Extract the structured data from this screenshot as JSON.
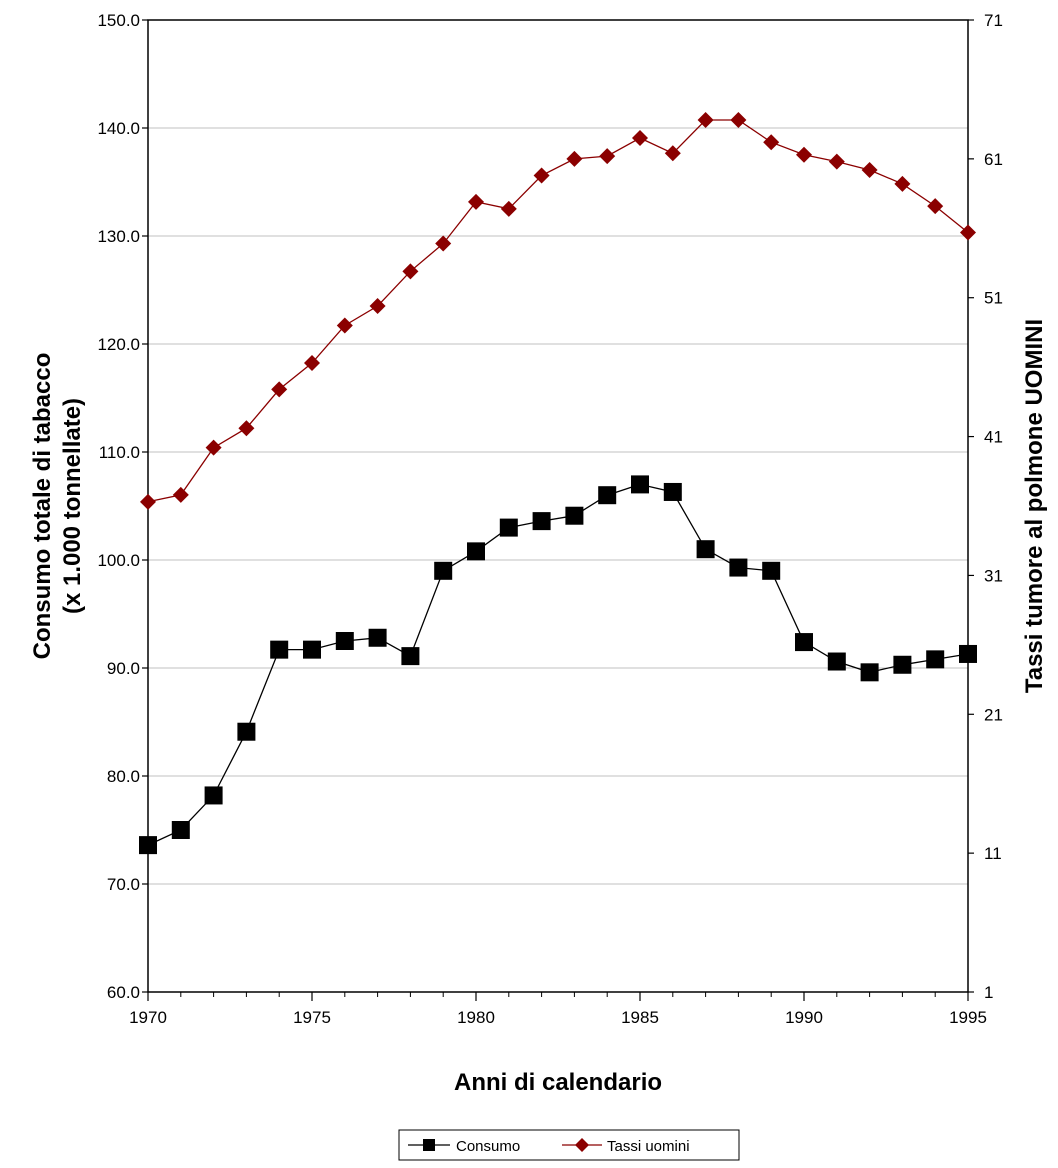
{
  "chart_data": {
    "type": "line",
    "title": "",
    "xlabel": "Anni di calendario",
    "ylabel_left": [
      "Consumo totale di tabacco",
      "(x 1.000 tonnellate)"
    ],
    "ylabel_right": "Tassi tumore al polmone UOMINI",
    "x": [
      1970,
      1971,
      1972,
      1973,
      1974,
      1975,
      1976,
      1977,
      1978,
      1979,
      1980,
      1981,
      1982,
      1983,
      1984,
      1985,
      1986,
      1987,
      1988,
      1989,
      1990,
      1991,
      1992,
      1993,
      1994,
      1995
    ],
    "x_ticks": [
      "1970",
      "1975",
      "1980",
      "1985",
      "1990",
      "1995"
    ],
    "y_left_ticks": [
      "60.0",
      "70.0",
      "80.0",
      "90.0",
      "100.0",
      "110.0",
      "120.0",
      "130.0",
      "140.0",
      "150.0"
    ],
    "y_right_ticks": [
      "1",
      "11",
      "21",
      "31",
      "41",
      "51",
      "61",
      "71"
    ],
    "ylim_left": [
      60,
      150
    ],
    "ylim_right": [
      1,
      71
    ],
    "grid": true,
    "legend_position": "bottom",
    "series": [
      {
        "name": "Consumo",
        "axis": "left",
        "marker": "square",
        "color": "#000000",
        "values": [
          73.6,
          75.0,
          78.2,
          84.1,
          91.7,
          91.7,
          92.5,
          92.8,
          91.1,
          99.0,
          100.8,
          103.0,
          103.6,
          104.1,
          106.0,
          107.0,
          106.3,
          101.0,
          99.3,
          99.0,
          92.4,
          90.6,
          89.6,
          90.3,
          90.8,
          91.3
        ]
      },
      {
        "name": "Tassi uomini",
        "axis": "right",
        "marker": "diamond",
        "color": "#8b0000",
        "values": [
          36.3,
          36.8,
          40.2,
          41.6,
          44.4,
          46.3,
          49.0,
          50.4,
          52.9,
          54.9,
          57.9,
          57.4,
          59.8,
          61.0,
          61.2,
          62.5,
          61.4,
          63.8,
          63.8,
          62.2,
          61.3,
          60.8,
          60.2,
          59.2,
          57.6,
          55.7
        ]
      }
    ]
  }
}
